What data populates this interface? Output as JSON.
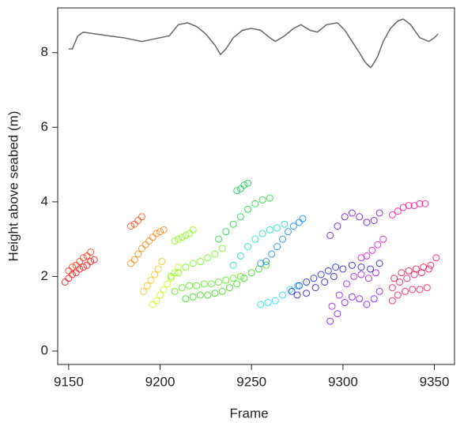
{
  "chart_data": {
    "type": "scatter",
    "xlabel": "Frame",
    "ylabel": "Height above seabed (m)",
    "xlim": [
      9144,
      9361
    ],
    "ylim": [
      -0.36,
      9.2
    ],
    "xticks": [
      9150,
      9200,
      9250,
      9300,
      9350
    ],
    "yticks": [
      0,
      2,
      4,
      6,
      8
    ],
    "series": [
      {
        "type": "line",
        "color": "#666666",
        "x": [
          9150,
          9152,
          9155,
          9158,
          9165,
          9172,
          9180,
          9190,
          9195,
          9200,
          9205,
          9210,
          9215,
          9220,
          9225,
          9230,
          9233,
          9236,
          9240,
          9245,
          9250,
          9255,
          9260,
          9263,
          9268,
          9273,
          9277,
          9282,
          9286,
          9291,
          9297,
          9301,
          9305,
          9309,
          9312,
          9315,
          9316,
          9319,
          9322,
          9326,
          9330,
          9333,
          9337,
          9342,
          9347,
          9350,
          9352
        ],
        "values": [
          8.1,
          8.1,
          8.45,
          8.55,
          8.5,
          8.45,
          8.4,
          8.3,
          8.35,
          8.4,
          8.45,
          8.75,
          8.8,
          8.7,
          8.5,
          8.2,
          7.95,
          8.1,
          8.4,
          8.6,
          8.65,
          8.6,
          8.4,
          8.3,
          8.45,
          8.65,
          8.75,
          8.6,
          8.55,
          8.75,
          8.8,
          8.6,
          8.3,
          8.0,
          7.75,
          7.6,
          7.65,
          7.9,
          8.3,
          8.65,
          8.85,
          8.9,
          8.75,
          8.4,
          8.3,
          8.4,
          8.5
        ]
      },
      {
        "color": "#ff0000",
        "x": [
          9148,
          9150,
          9152,
          9154,
          9156,
          9158,
          9160,
          9162,
          9164
        ],
        "values": [
          1.85,
          1.95,
          2.05,
          2.1,
          2.2,
          2.25,
          2.3,
          2.4,
          2.45
        ]
      },
      {
        "color": "#ff2a00",
        "x": [
          9150,
          9152,
          9154,
          9156,
          9158,
          9160,
          9162
        ],
        "values": [
          2.15,
          2.25,
          2.3,
          2.4,
          2.5,
          2.55,
          2.65
        ]
      },
      {
        "color": "#ff4000",
        "x": [
          9184,
          9186,
          9188,
          9190
        ],
        "values": [
          3.35,
          3.4,
          3.5,
          3.6
        ]
      },
      {
        "color": "#ff8000",
        "x": [
          9184,
          9186,
          9188,
          9190,
          9192,
          9194,
          9196,
          9198,
          9200,
          9202
        ],
        "values": [
          2.35,
          2.45,
          2.6,
          2.75,
          2.85,
          2.95,
          3.05,
          3.15,
          3.2,
          3.25
        ]
      },
      {
        "color": "#ffc000",
        "x": [
          9191,
          9193,
          9195,
          9197,
          9199,
          9201
        ],
        "values": [
          1.6,
          1.75,
          1.9,
          2.05,
          2.2,
          2.4
        ]
      },
      {
        "color": "#c0ff00",
        "x": [
          9196,
          9198,
          9200,
          9202,
          9204,
          9206,
          9208,
          9210
        ],
        "values": [
          1.25,
          1.35,
          1.5,
          1.65,
          1.8,
          1.95,
          2.1,
          2.25
        ]
      },
      {
        "color": "#80ff00",
        "x": [
          9208,
          9210,
          9212,
          9214,
          9216,
          9218
        ],
        "values": [
          2.95,
          3.0,
          3.05,
          3.1,
          3.15,
          3.25
        ]
      },
      {
        "color": "#60ff00",
        "x": [
          9206,
          9210,
          9214,
          9218,
          9222,
          9226,
          9230,
          9234
        ],
        "values": [
          2.0,
          2.1,
          2.25,
          2.35,
          2.4,
          2.5,
          2.6,
          2.75
        ]
      },
      {
        "color": "#40f000",
        "x": [
          9208,
          9212,
          9216,
          9220,
          9224,
          9228,
          9232,
          9236,
          9240,
          9244
        ],
        "values": [
          1.6,
          1.7,
          1.75,
          1.75,
          1.8,
          1.8,
          1.85,
          1.9,
          1.95,
          2.0
        ]
      },
      {
        "color": "#20e000",
        "x": [
          9214,
          9218,
          9222,
          9226,
          9230,
          9234,
          9238,
          9242,
          9246,
          9250,
          9254,
          9258
        ],
        "values": [
          1.4,
          1.45,
          1.5,
          1.5,
          1.55,
          1.6,
          1.7,
          1.8,
          1.95,
          2.1,
          2.2,
          2.3
        ]
      },
      {
        "color": "#00e020",
        "x": [
          9232,
          9236,
          9240,
          9244,
          9248,
          9252,
          9256,
          9260
        ],
        "values": [
          3.0,
          3.2,
          3.4,
          3.6,
          3.8,
          3.95,
          4.05,
          4.1
        ]
      },
      {
        "color": "#00d040",
        "x": [
          9242,
          9244,
          9246,
          9248
        ],
        "values": [
          4.3,
          4.35,
          4.45,
          4.5
        ]
      },
      {
        "color": "#00e0c0",
        "x": [
          9240,
          9244,
          9248,
          9252,
          9256,
          9260,
          9264,
          9268
        ],
        "values": [
          2.3,
          2.55,
          2.8,
          3.0,
          3.15,
          3.25,
          3.3,
          3.4
        ]
      },
      {
        "color": "#00e0ff",
        "x": [
          9255,
          9259,
          9263,
          9267,
          9271,
          9275
        ],
        "values": [
          1.25,
          1.3,
          1.35,
          1.5,
          1.65,
          1.75
        ]
      },
      {
        "color": "#0080ff",
        "x": [
          9255,
          9258,
          9261,
          9264,
          9267,
          9270,
          9273,
          9276,
          9278
        ],
        "values": [
          2.35,
          2.4,
          2.6,
          2.8,
          3.0,
          3.2,
          3.35,
          3.45,
          3.55
        ]
      },
      {
        "color": "#0020e0",
        "x": [
          9272,
          9276,
          9280,
          9284,
          9288,
          9292,
          9296
        ],
        "values": [
          1.6,
          1.75,
          1.85,
          1.95,
          2.05,
          2.15,
          2.25
        ]
      },
      {
        "color": "#2000d0",
        "x": [
          9275,
          9280,
          9285,
          9290,
          9295,
          9300,
          9305,
          9310,
          9315,
          9320
        ],
        "values": [
          1.5,
          1.55,
          1.7,
          1.85,
          2.0,
          2.2,
          2.3,
          2.25,
          2.2,
          2.35
        ]
      },
      {
        "color": "#6000e0",
        "x": [
          9293,
          9297,
          9301,
          9305,
          9309,
          9313,
          9317,
          9320
        ],
        "values": [
          3.1,
          3.35,
          3.6,
          3.7,
          3.6,
          3.45,
          3.5,
          3.7
        ]
      },
      {
        "color": "#8000ff",
        "x": [
          9293,
          9297,
          9301,
          9305,
          9309,
          9313,
          9317,
          9320
        ],
        "values": [
          0.8,
          1.0,
          1.3,
          1.45,
          1.4,
          1.25,
          1.4,
          1.6
        ]
      },
      {
        "color": "#a000ff",
        "x": [
          9294,
          9298,
          9302,
          9306,
          9310,
          9314,
          9318
        ],
        "values": [
          1.2,
          1.5,
          1.8,
          2.0,
          2.05,
          1.95,
          2.1
        ]
      },
      {
        "color": "#e000e0",
        "x": [
          9310,
          9313,
          9316,
          9319,
          9322
        ],
        "values": [
          2.5,
          2.55,
          2.7,
          2.85,
          3.0
        ]
      },
      {
        "color": "#ff00a0",
        "x": [
          9327,
          9330,
          9333,
          9336,
          9339,
          9342,
          9345
        ],
        "values": [
          3.65,
          3.75,
          3.85,
          3.9,
          3.9,
          3.95,
          3.95
        ]
      },
      {
        "color": "#ff0060",
        "x": [
          9327,
          9331,
          9335,
          9339,
          9343,
          9347,
          9351
        ],
        "values": [
          1.7,
          1.85,
          1.95,
          2.05,
          2.1,
          2.2,
          2.5
        ]
      },
      {
        "color": "#ff0030",
        "x": [
          9328,
          9332,
          9336,
          9340,
          9344,
          9348
        ],
        "values": [
          1.95,
          2.1,
          2.15,
          2.2,
          2.25,
          2.3
        ]
      },
      {
        "color": "#ff0050",
        "x": [
          9327,
          9330,
          9334,
          9338,
          9342,
          9346
        ],
        "values": [
          1.35,
          1.5,
          1.6,
          1.65,
          1.65,
          1.7
        ]
      }
    ]
  }
}
